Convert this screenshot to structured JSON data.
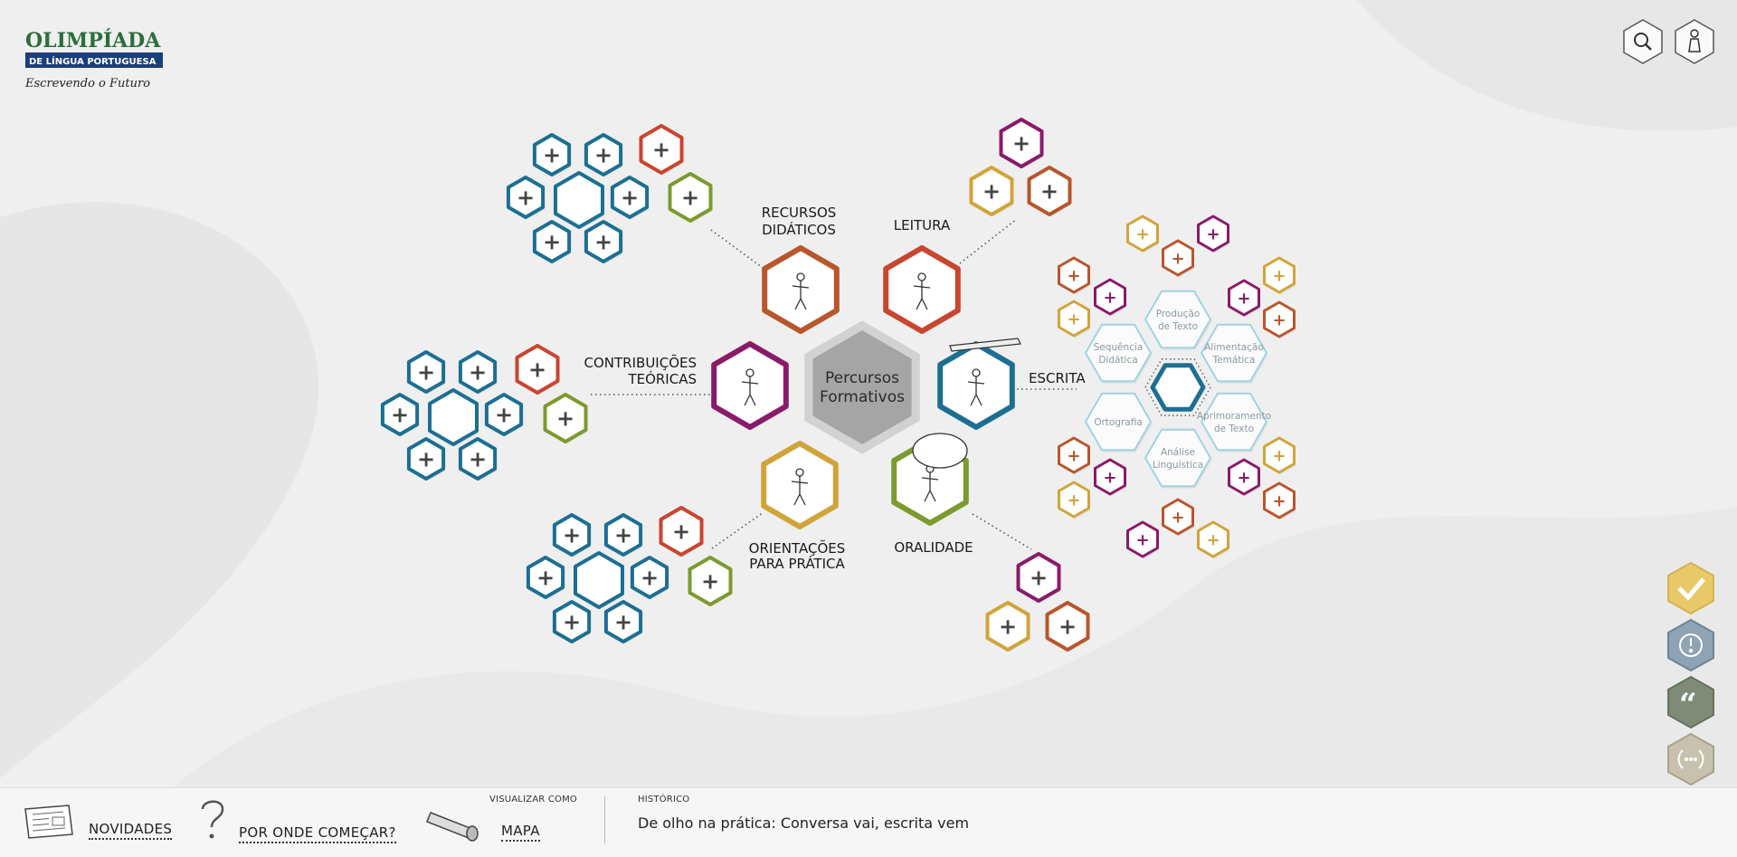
{
  "header": {
    "logo": {
      "line1": "OLIMPÍADA",
      "line2": "DE LÍNGUA PORTUGUESA",
      "line3": "Escrevendo o Futuro"
    },
    "search_icon": "search-icon",
    "user_icon": "user-icon"
  },
  "center": {
    "line1": "Percursos",
    "line2": "Formativos"
  },
  "categories": {
    "recursos": {
      "line1": "RECURSOS",
      "line2": "DIDÁTICOS",
      "color": "#b8562c"
    },
    "leitura": {
      "line1": "LEITURA",
      "color": "#c9452f"
    },
    "contribuicoes": {
      "line1": "CONTRIBUIÇÕES",
      "line2": "TEÓRICAS",
      "color": "#8a1a6a"
    },
    "escrita": {
      "line1": "ESCRITA",
      "color": "#1c6f93"
    },
    "orientacoes": {
      "line1": "ORIENTAÇÕES",
      "line2": "PARA PRÁTICA",
      "color": "#d1a43a"
    },
    "oralidade": {
      "line1": "ORALIDADE",
      "color": "#7c9a2e"
    }
  },
  "escrita_sub": {
    "producao": {
      "line1": "Produção",
      "line2": "de Texto"
    },
    "alimentacao": {
      "line1": "Alimentação",
      "line2": "Temática"
    },
    "sequencia": {
      "line1": "Sequência",
      "line2": "Didática"
    },
    "ortografia": {
      "line1": "Ortografia"
    },
    "aprimoramento": {
      "line1": "Aprimoramento",
      "line2": "de Texto"
    },
    "analise": {
      "line1": "Análise",
      "line2": "Linguística"
    }
  },
  "plus_symbol": "+",
  "colors": {
    "blue": "#1c6f93",
    "gold": "#d1a43a",
    "orange": "#b8562c",
    "red": "#c9452f",
    "magenta": "#8a1a6a",
    "green": "#7c9a2e",
    "gray": "#a5a5a5"
  },
  "sidebar": {
    "check_icon": "check-icon",
    "alert_icon": "alert-icon",
    "quote_icon": "quote-icon",
    "ellipsis_icon": "ellipsis-icon"
  },
  "bottombar": {
    "novidades": "NOVIDADES",
    "por_onde": "POR ONDE COMEÇAR?",
    "visualizar_caption": "VISUALIZAR COMO",
    "mapa": "MAPA",
    "historico_caption": "HISTÓRICO",
    "historico_item": "De olho na prática: Conversa vai, escrita vem"
  }
}
